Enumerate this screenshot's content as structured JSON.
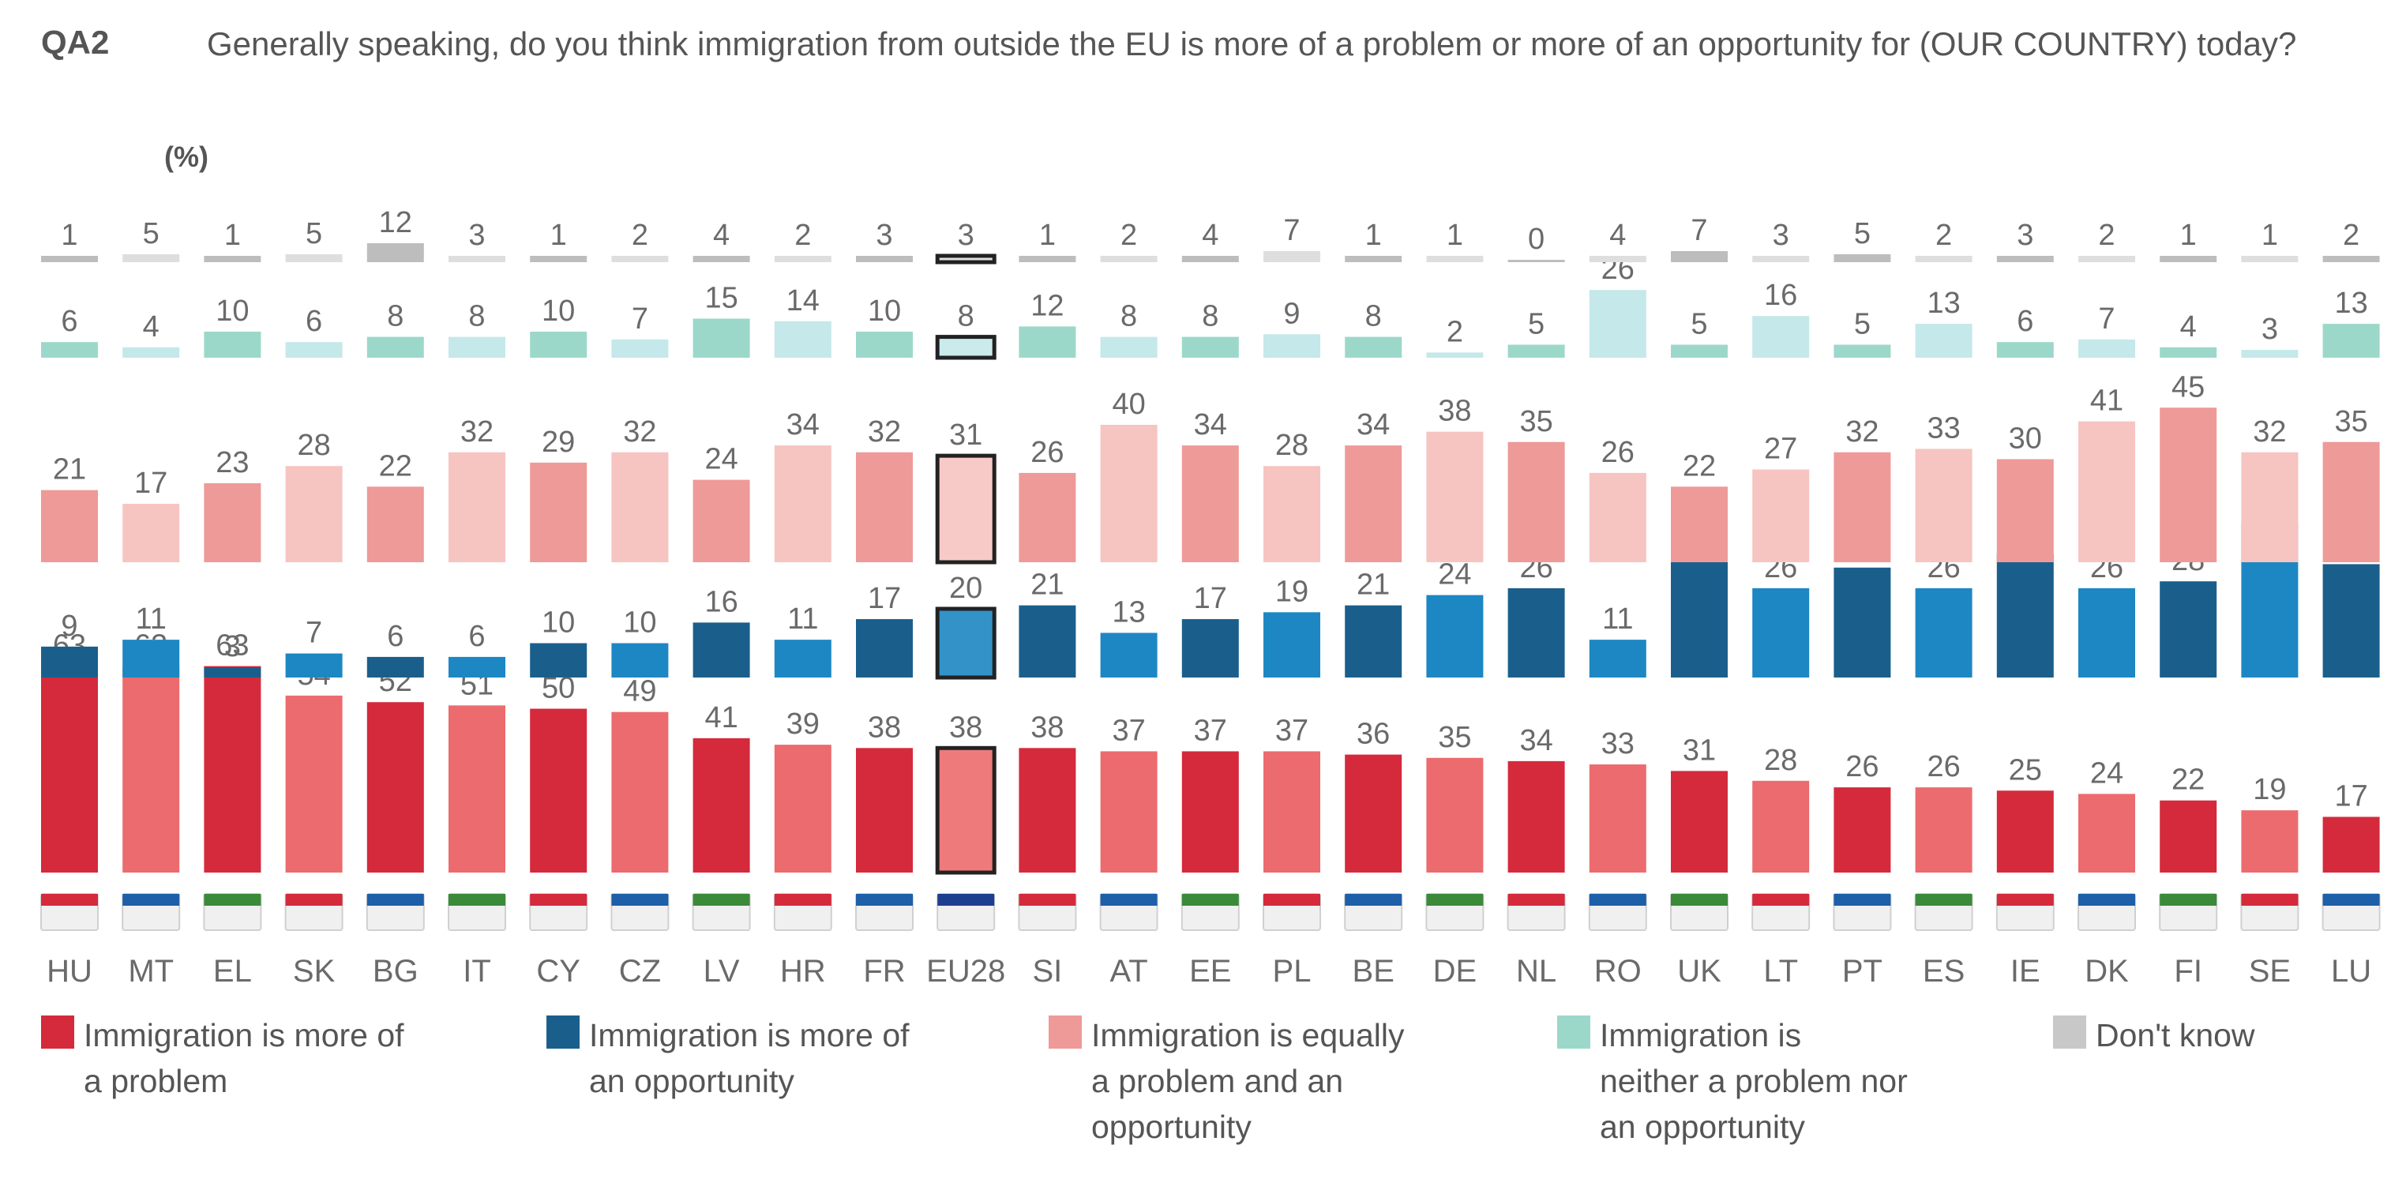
{
  "header": {
    "question_id": "QA2",
    "question": "Generally speaking, do you think immigration from outside the EU is more of a problem or more of an opportunity for (OUR COUNTRY) today?",
    "unit": "(%)"
  },
  "colors": {
    "problem_dark": "#d42a3c",
    "problem_light": "#ec6b6e",
    "opportunity_dark": "#1a5f8c",
    "opportunity_light": "#1d87c3",
    "equally_dark": "#ee9a98",
    "equally_light": "#f6c4c1",
    "neither_dark": "#9cd8c9",
    "neither_light": "#c5e8ea",
    "dont_know_dark": "#bdbdbd",
    "dont_know_light": "#dedede",
    "eu_outline": "#222222"
  },
  "legend": [
    {
      "key": "problem",
      "label": "Immigration is more of a problem",
      "lines": [
        "Immigration is more of",
        "a problem"
      ],
      "color": "#d42a3c"
    },
    {
      "key": "opportunity",
      "label": "Immigration is more of an opportunity",
      "lines": [
        "Immigration is more of",
        "an opportunity"
      ],
      "color": "#1a5f8c"
    },
    {
      "key": "equally",
      "label": "Immigration is equally a problem and an opportunity",
      "lines": [
        "Immigration is equally",
        "a problem and an",
        "opportunity"
      ],
      "color": "#ee9a98"
    },
    {
      "key": "neither",
      "label": "Immigration is neither a problem nor an opportunity",
      "lines": [
        "Immigration is",
        "neither a problem nor",
        "an opportunity"
      ],
      "color": "#9cd8c9"
    },
    {
      "key": "dont_know",
      "label": "Don't know",
      "lines": [
        "Don't know"
      ],
      "color": "#c8c8c8"
    }
  ],
  "chart_data": {
    "type": "bar",
    "title": "QA2 Generally speaking, do you think immigration from outside the EU is more of a problem or more of an opportunity for (OUR COUNTRY) today?",
    "ylabel": "(%)",
    "categories": [
      "HU",
      "MT",
      "EL",
      "SK",
      "BG",
      "IT",
      "CY",
      "CZ",
      "LV",
      "HR",
      "FR",
      "EU28",
      "SI",
      "AT",
      "EE",
      "PL",
      "BE",
      "DE",
      "NL",
      "RO",
      "UK",
      "LT",
      "PT",
      "ES",
      "IE",
      "DK",
      "FI",
      "SE",
      "LU"
    ],
    "highlight": "EU28",
    "series": [
      {
        "name": "Immigration is more of a problem",
        "key": "problem",
        "values": [
          63,
          63,
          63,
          54,
          52,
          51,
          50,
          49,
          41,
          39,
          38,
          38,
          38,
          37,
          37,
          37,
          36,
          35,
          34,
          33,
          31,
          28,
          26,
          26,
          25,
          24,
          22,
          19,
          17
        ]
      },
      {
        "name": "Immigration is more of an opportunity",
        "key": "opportunity",
        "values": [
          9,
          11,
          3,
          7,
          6,
          6,
          10,
          10,
          16,
          11,
          17,
          20,
          21,
          13,
          17,
          19,
          21,
          24,
          26,
          11,
          35,
          26,
          32,
          26,
          36,
          26,
          28,
          45,
          33
        ]
      },
      {
        "name": "Immigration is equally a problem and an opportunity",
        "key": "equally",
        "values": [
          21,
          17,
          23,
          28,
          22,
          32,
          29,
          32,
          24,
          34,
          32,
          31,
          26,
          40,
          34,
          28,
          34,
          38,
          35,
          26,
          22,
          27,
          32,
          33,
          30,
          41,
          45,
          32,
          35
        ]
      },
      {
        "name": "Immigration is neither a problem nor an opportunity",
        "key": "neither",
        "values": [
          6,
          4,
          10,
          6,
          8,
          8,
          10,
          7,
          15,
          14,
          10,
          8,
          12,
          8,
          8,
          9,
          8,
          2,
          5,
          26,
          5,
          16,
          5,
          13,
          6,
          7,
          4,
          3,
          13
        ]
      },
      {
        "name": "Don't know",
        "key": "dont_know",
        "values": [
          1,
          5,
          1,
          5,
          12,
          3,
          1,
          2,
          4,
          2,
          3,
          3,
          1,
          2,
          4,
          7,
          1,
          1,
          0,
          4,
          7,
          3,
          5,
          2,
          3,
          2,
          1,
          1,
          2
        ]
      }
    ]
  }
}
